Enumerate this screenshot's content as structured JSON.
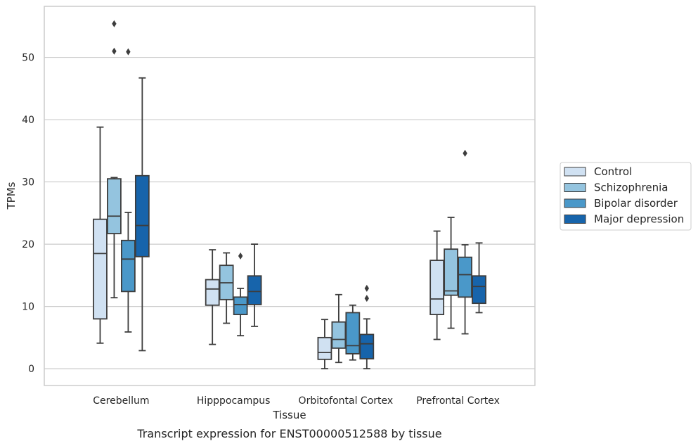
{
  "chart_data": {
    "type": "box",
    "title": "",
    "xlabel": "Tissue",
    "ylabel": "TPMs",
    "caption": "Transcript expression for ENST00000512588 by tissue",
    "ylim": [
      -2.7,
      58.2
    ],
    "yticks": [
      0,
      10,
      20,
      30,
      40,
      50
    ],
    "grid": "y",
    "legend_position": "right",
    "categories": [
      "Cerebellum",
      "Hipppocampus",
      "Orbitofontal Cortex",
      "Prefrontal Cortex"
    ],
    "series": [
      {
        "name": "Control",
        "color": "#d0e1f2",
        "boxes": [
          {
            "whislo": 4.1,
            "q1": 8.0,
            "med": 18.5,
            "q3": 24.0,
            "whishi": 38.8,
            "fliers": []
          },
          {
            "whislo": 3.9,
            "q1": 10.2,
            "med": 12.8,
            "q3": 14.3,
            "whishi": 19.1,
            "fliers": []
          },
          {
            "whislo": 0.0,
            "q1": 1.5,
            "med": 2.6,
            "q3": 5.0,
            "whishi": 7.9,
            "fliers": []
          },
          {
            "whislo": 4.7,
            "q1": 8.7,
            "med": 11.2,
            "q3": 17.4,
            "whishi": 22.1,
            "fliers": []
          }
        ]
      },
      {
        "name": "Schizophrenia",
        "color": "#94c4df",
        "boxes": [
          {
            "whislo": 11.4,
            "q1": 21.7,
            "med": 24.5,
            "q3": 30.5,
            "whishi": 30.7,
            "fliers": [
              51.0,
              55.4
            ]
          },
          {
            "whislo": 7.3,
            "q1": 11.1,
            "med": 13.8,
            "q3": 16.6,
            "whishi": 18.6,
            "fliers": []
          },
          {
            "whislo": 1.0,
            "q1": 3.3,
            "med": 4.7,
            "q3": 7.5,
            "whishi": 11.9,
            "fliers": []
          },
          {
            "whislo": 6.5,
            "q1": 11.8,
            "med": 12.5,
            "q3": 19.2,
            "whishi": 24.3,
            "fliers": []
          }
        ]
      },
      {
        "name": "Bipolar disorder",
        "color": "#4a98c9",
        "boxes": [
          {
            "whislo": 5.9,
            "q1": 12.4,
            "med": 17.6,
            "q3": 20.6,
            "whishi": 25.1,
            "fliers": [
              50.9
            ]
          },
          {
            "whislo": 5.3,
            "q1": 8.7,
            "med": 10.3,
            "q3": 11.5,
            "whishi": 12.9,
            "fliers": [
              18.1
            ]
          },
          {
            "whislo": 1.4,
            "q1": 2.4,
            "med": 3.7,
            "q3": 9.0,
            "whishi": 10.2,
            "fliers": []
          },
          {
            "whislo": 5.6,
            "q1": 11.5,
            "med": 15.1,
            "q3": 17.9,
            "whishi": 19.9,
            "fliers": [
              34.6
            ]
          }
        ]
      },
      {
        "name": "Major depression",
        "color": "#1764ab",
        "boxes": [
          {
            "whislo": 2.9,
            "q1": 18.0,
            "med": 23.0,
            "q3": 31.0,
            "whishi": 46.7,
            "fliers": []
          },
          {
            "whislo": 6.8,
            "q1": 10.3,
            "med": 12.4,
            "q3": 14.9,
            "whishi": 20.0,
            "fliers": []
          },
          {
            "whislo": 0.0,
            "q1": 1.6,
            "med": 4.0,
            "q3": 5.5,
            "whishi": 8.0,
            "fliers": [
              11.3,
              12.9
            ]
          },
          {
            "whislo": 9.0,
            "q1": 10.5,
            "med": 13.2,
            "q3": 14.9,
            "whishi": 20.2,
            "fliers": []
          }
        ]
      }
    ]
  }
}
